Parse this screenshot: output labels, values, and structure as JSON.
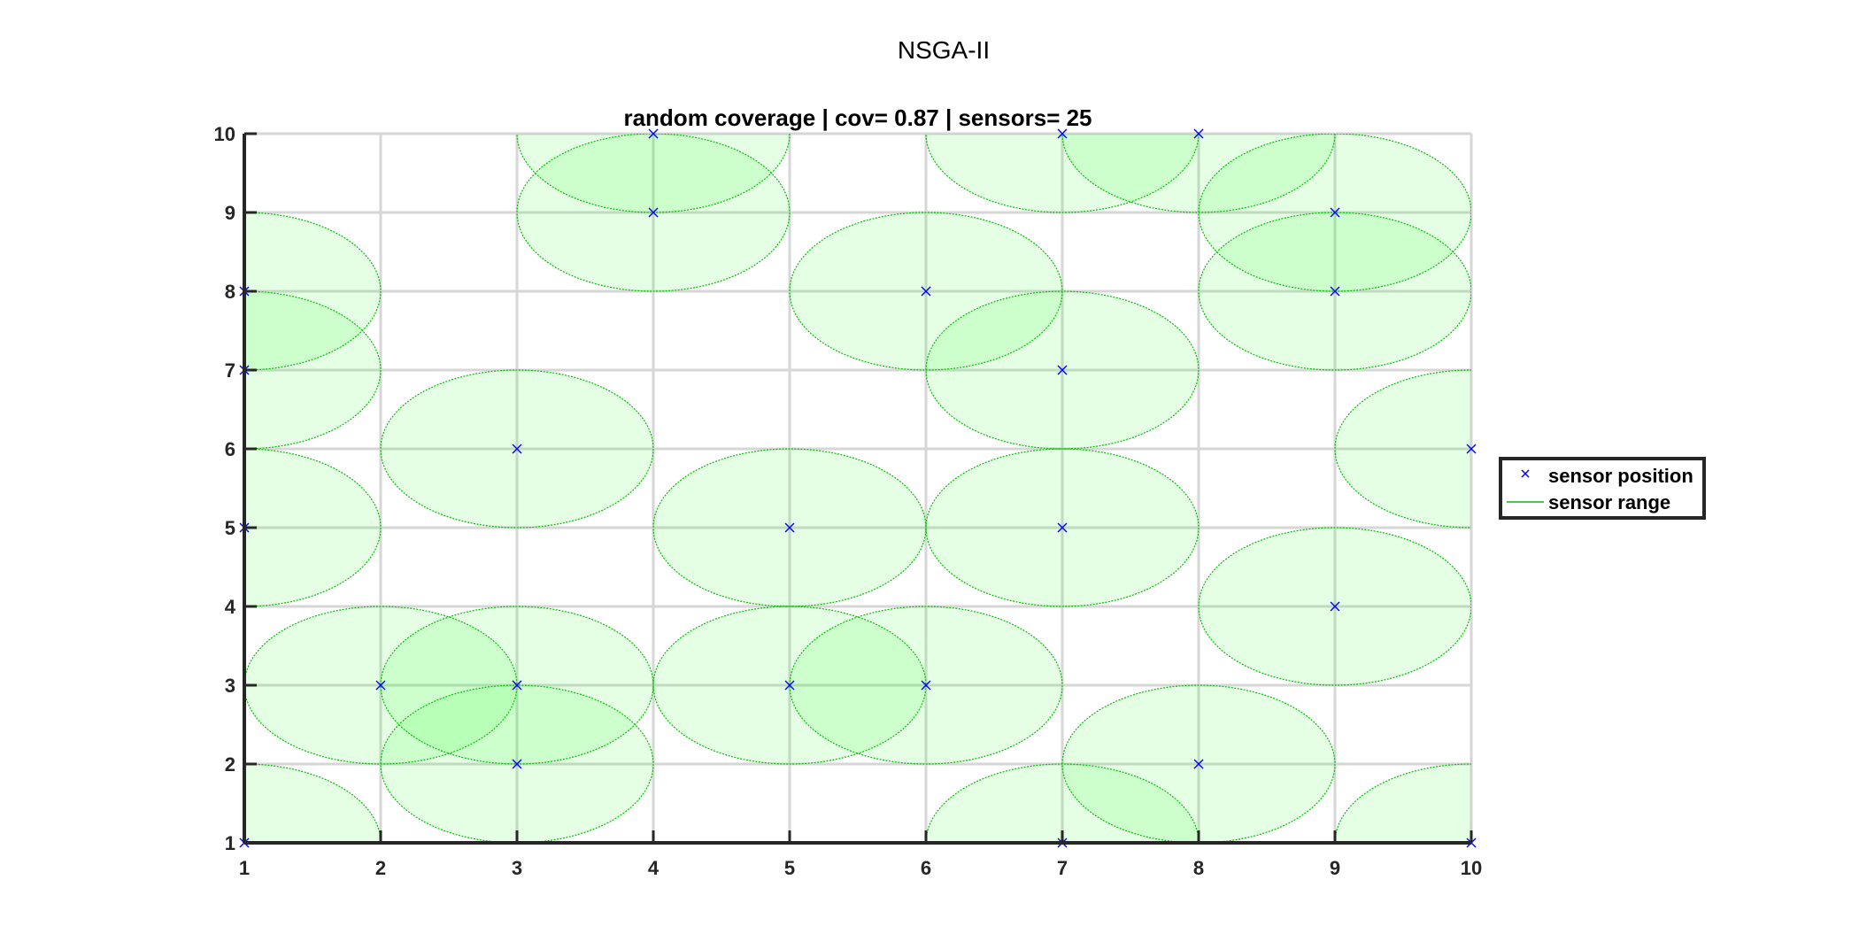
{
  "figure": {
    "title": "NSGA-II"
  },
  "chart_data": {
    "type": "scatter",
    "title": "random coverage | cov= 0.87 | sensors= 25",
    "xlabel": "",
    "ylabel": "",
    "xlim": [
      1,
      10
    ],
    "ylim": [
      1,
      10
    ],
    "xticks": [
      1,
      2,
      3,
      4,
      5,
      6,
      7,
      8,
      9,
      10
    ],
    "yticks": [
      1,
      2,
      3,
      4,
      5,
      6,
      7,
      8,
      9,
      10
    ],
    "grid": true,
    "legend_location": "outside-right",
    "sensor_radius": 1,
    "series": [
      {
        "name": "sensor position",
        "marker": "x",
        "color": "#0000ff",
        "points": [
          [
            1,
            1
          ],
          [
            1,
            5
          ],
          [
            1,
            7
          ],
          [
            1,
            8
          ],
          [
            2,
            3
          ],
          [
            3,
            2
          ],
          [
            3,
            3
          ],
          [
            3,
            6
          ],
          [
            4,
            9
          ],
          [
            4,
            10
          ],
          [
            5,
            3
          ],
          [
            5,
            5
          ],
          [
            6,
            3
          ],
          [
            6,
            8
          ],
          [
            7,
            1
          ],
          [
            7,
            5
          ],
          [
            7,
            7
          ],
          [
            7,
            10
          ],
          [
            8,
            2
          ],
          [
            8,
            10
          ],
          [
            9,
            4
          ],
          [
            9,
            8
          ],
          [
            9,
            9
          ],
          [
            10,
            1
          ],
          [
            10,
            6
          ]
        ]
      },
      {
        "name": "sensor range",
        "marker": "circle",
        "color": "#00c000",
        "fill_color": "#00ff00",
        "fill_opacity": 0.1
      }
    ]
  }
}
